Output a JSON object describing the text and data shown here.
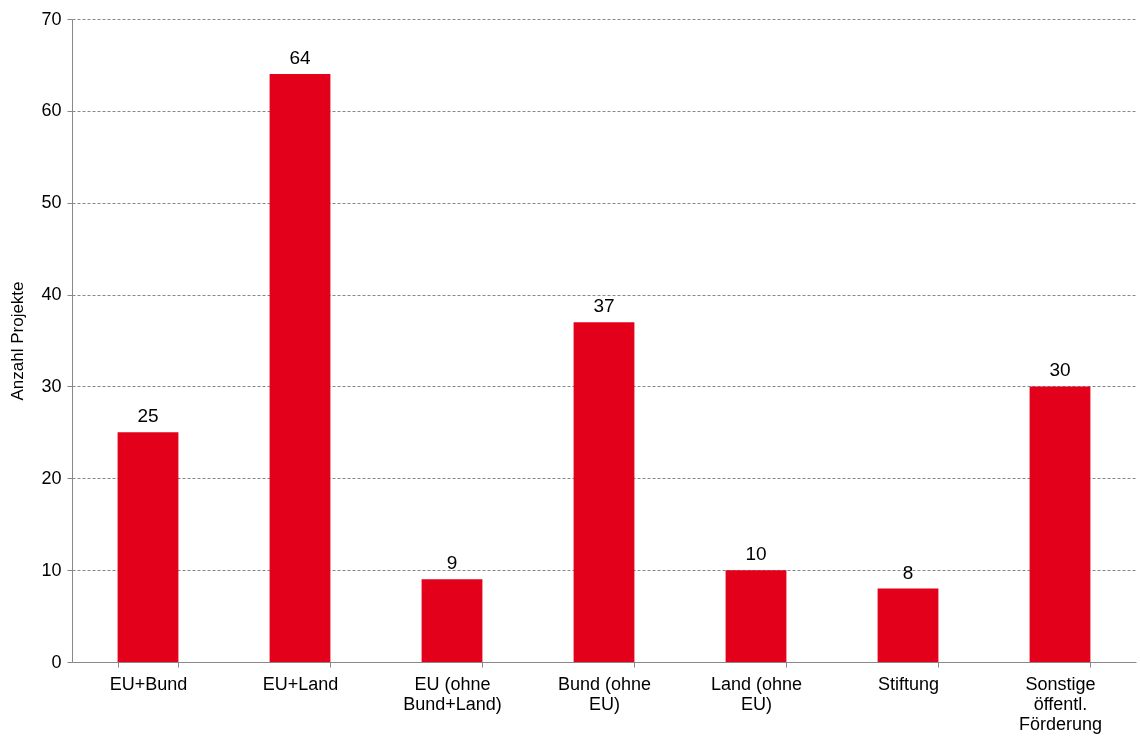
{
  "chart_data": {
    "type": "bar",
    "ylabel": "Anzahl Projekte",
    "categories": [
      "EU+Bund",
      "EU+Land",
      "EU (ohne Bund+Land)",
      "Bund (ohne EU)",
      "Land (ohne EU)",
      "Stiftung",
      "Sonstige öffentl. Förderung"
    ],
    "values": [
      25,
      64,
      9,
      37,
      10,
      8,
      30
    ],
    "color": "#e2001a",
    "ylim": [
      0,
      70
    ],
    "yticks": [
      0,
      10,
      20,
      30,
      40,
      50,
      60,
      70
    ],
    "grid": "y",
    "data_labels": true
  }
}
